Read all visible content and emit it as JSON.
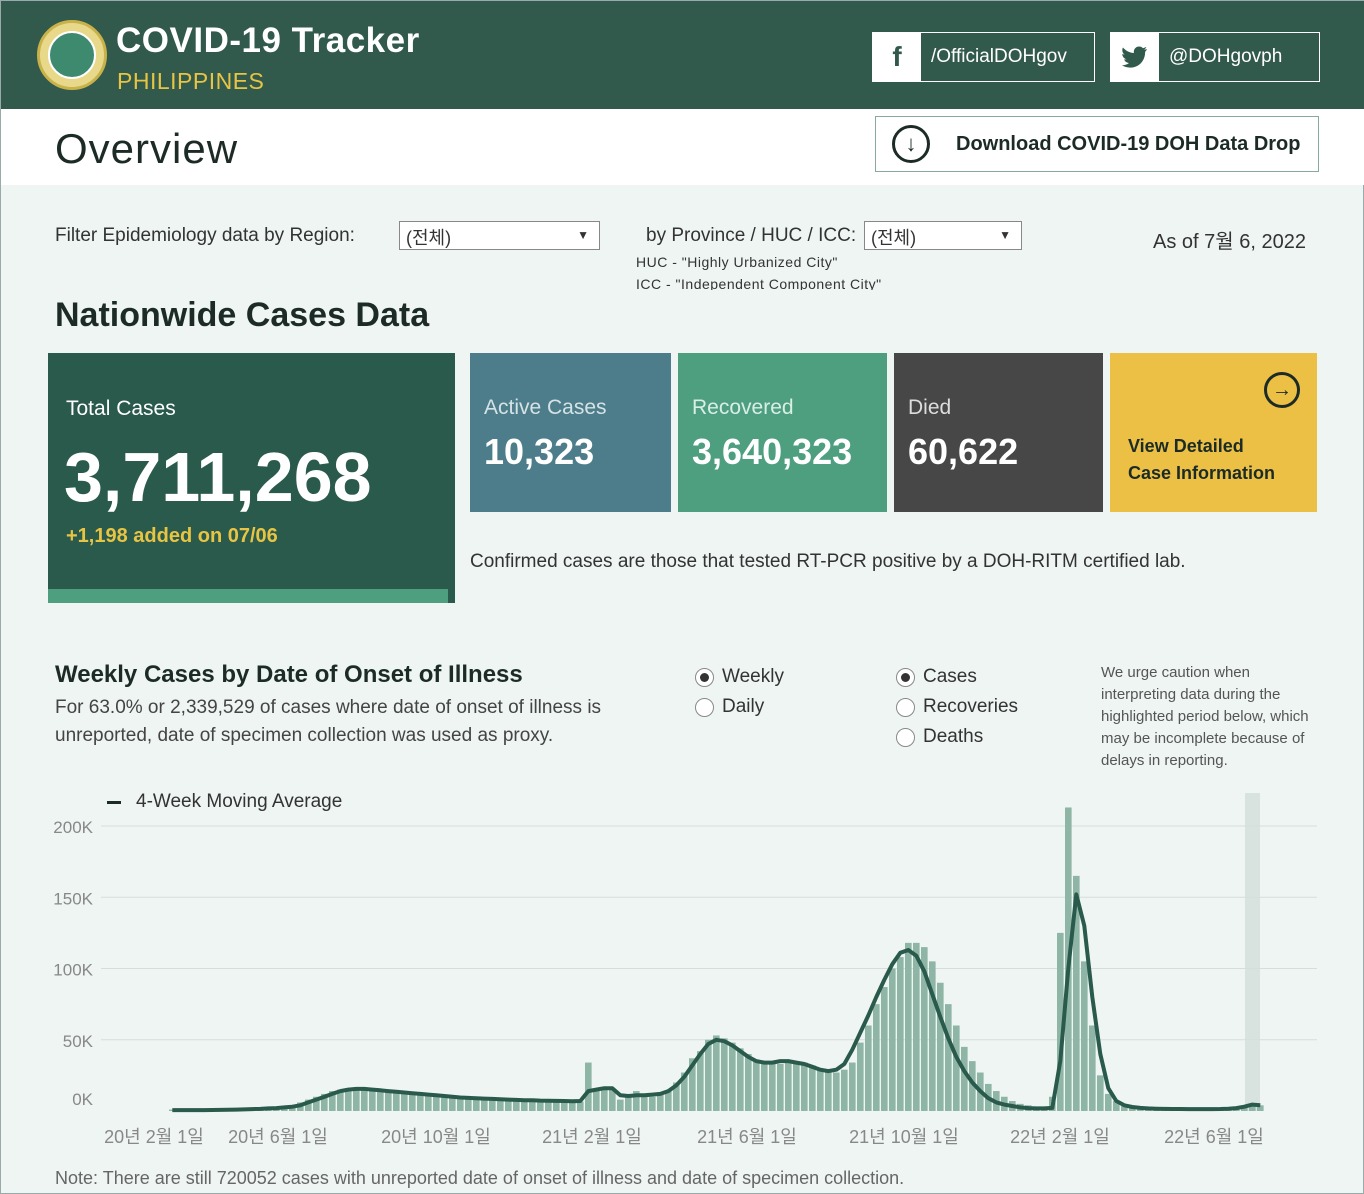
{
  "header": {
    "title": "COVID-19 Tracker",
    "subtitle": "PHILIPPINES",
    "facebook": "/OfficialDOHgov",
    "twitter": "@DOHgovph"
  },
  "overview": {
    "title": "Overview",
    "download_label": "Download COVID-19 DOH Data Drop"
  },
  "filters": {
    "region_label": "Filter Epidemiology data by Region:",
    "region_value": "(전체)",
    "province_label": "by Province / HUC / ICC:",
    "province_value": "(전체)",
    "huc_note": "HUC - \"Highly Urbanized City\"",
    "icc_note": "ICC - \"Independent Component City\"",
    "as_of": "As of 7월 6, 2022"
  },
  "nationwide": {
    "title": "Nationwide Cases Data",
    "total_label": "Total Cases",
    "total_value": "3,711,268",
    "added": "+1,198 added on 07/06",
    "active_label": "Active Cases",
    "active_value": "10,323",
    "recovered_label": "Recovered",
    "recovered_value": "3,640,323",
    "died_label": "Died",
    "died_value": "60,622",
    "detail_line1": "View Detailed",
    "detail_line2": "Case Information",
    "confirmed_note": "Confirmed cases are those that tested RT-PCR positive by a DOH-RITM certified lab.",
    "colors": {
      "total": "#2a5a4b",
      "active": "#4d7d8a",
      "recovered": "#4e9e80",
      "died": "#474747",
      "detail": "#ebc044"
    }
  },
  "weekly": {
    "title": "Weekly Cases by Date of Onset of Illness",
    "subtitle": "For 63.0% or 2,339,529 of cases where date of onset of illness is unreported, date of specimen collection was used as proxy.",
    "period_options": [
      "Weekly",
      "Daily"
    ],
    "period_selected": "Weekly",
    "metric_options": [
      "Cases",
      "Recoveries",
      "Deaths"
    ],
    "metric_selected": "Cases",
    "caution": "We urge caution when interpreting data during the highlighted period below, which may be incomplete because of delays in reporting.",
    "legend": "4-Week Moving Average",
    "footnote": "Note: There are still 720052 cases with unreported date of onset of illness and date of specimen collection."
  },
  "chart_data": {
    "type": "bar",
    "title": "Weekly Cases by Date of Onset of Illness",
    "xlabel": "",
    "ylabel": "",
    "ylim": [
      0,
      200000
    ],
    "y_ticks": [
      "200K",
      "150K",
      "100K",
      "50K",
      "0K"
    ],
    "x_ticks": [
      "20년 2월 1일",
      "20년 6월 1일",
      "20년 10월 1일",
      "21년 2월 1일",
      "21년 6월 1일",
      "21년 10월 1일",
      "22년 2월 1일",
      "22년 6월 1일"
    ],
    "grid": true,
    "bar_color": "#8fb5a6",
    "line_color": "#2a5a4b",
    "highlight_color": "#d8e3e0",
    "series": [
      {
        "name": "Cases",
        "values": [
          1000,
          500,
          500,
          600,
          700,
          800,
          900,
          1000,
          1200,
          1300,
          1500,
          1800,
          2000,
          2500,
          3000,
          4000,
          6000,
          8000,
          10000,
          12000,
          14000,
          15000,
          15000,
          15000,
          14500,
          14000,
          13500,
          13000,
          13000,
          12500,
          12000,
          11500,
          11000,
          10500,
          10000,
          9500,
          9000,
          8500,
          8000,
          8000,
          7500,
          7500,
          7000,
          7000,
          7000,
          7000,
          6500,
          6500,
          6500,
          7000,
          6500,
          6500,
          34000,
          15000,
          16000,
          15000,
          8000,
          10000,
          14000,
          12000,
          10000,
          12000,
          14000,
          20000,
          27000,
          37000,
          42000,
          50000,
          53000,
          51000,
          48000,
          44000,
          40000,
          36000,
          34000,
          33000,
          33000,
          34000,
          35000,
          34000,
          32000,
          29000,
          27000,
          27000,
          29000,
          34000,
          48000,
          60000,
          75000,
          87000,
          100000,
          108000,
          118000,
          118000,
          115000,
          105000,
          90000,
          75000,
          60000,
          45000,
          35000,
          27000,
          19000,
          14000,
          10000,
          7000,
          5000,
          4000,
          3000,
          2500,
          10000,
          125000,
          213000,
          165000,
          105000,
          60000,
          25000,
          12000,
          7000,
          4000,
          3000,
          2500,
          2000,
          1800,
          1500,
          1500,
          1500,
          1400,
          1300,
          1300,
          1300,
          1400,
          1600,
          2000,
          3000,
          5000,
          4000
        ]
      },
      {
        "name": "4-Week Moving Average",
        "values": [
          600,
          600,
          600,
          600,
          650,
          700,
          800,
          900,
          1000,
          1100,
          1300,
          1500,
          1800,
          2000,
          2500,
          3000,
          4000,
          6000,
          8000,
          10000,
          12000,
          14000,
          15000,
          15500,
          15500,
          15000,
          14500,
          14000,
          13500,
          13000,
          12500,
          12000,
          11500,
          11000,
          10500,
          10000,
          9500,
          9200,
          9000,
          8700,
          8500,
          8200,
          8000,
          7800,
          7600,
          7500,
          7300,
          7200,
          7100,
          7000,
          6800,
          7000,
          14000,
          15000,
          16000,
          16000,
          11000,
          10500,
          11000,
          11000,
          11500,
          12000,
          14000,
          18000,
          24000,
          32000,
          40000,
          47000,
          50000,
          49000,
          46000,
          42000,
          38000,
          35000,
          34000,
          34000,
          35000,
          35000,
          34000,
          33000,
          31000,
          29000,
          28000,
          29000,
          33000,
          43000,
          55000,
          67000,
          80000,
          92000,
          103000,
          111000,
          113000,
          109000,
          98000,
          82000,
          66000,
          51000,
          38000,
          28000,
          20000,
          14000,
          9000,
          6000,
          4500,
          3500,
          2500,
          2000,
          1800,
          1800,
          2200,
          35000,
          100000,
          152000,
          130000,
          80000,
          40000,
          16000,
          7000,
          4000,
          2800,
          2200,
          1800,
          1600,
          1500,
          1400,
          1400,
          1300,
          1300,
          1300,
          1300,
          1400,
          1600,
          2000,
          3000,
          4500,
          4000
        ]
      }
    ]
  }
}
